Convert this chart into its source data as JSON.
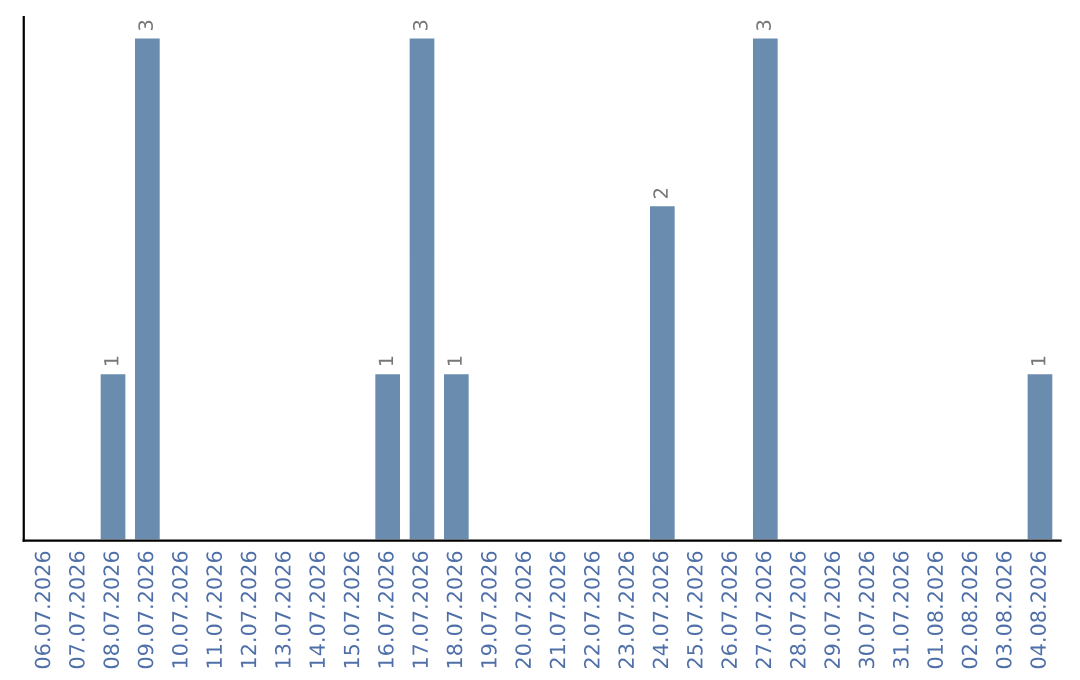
{
  "chart_data": {
    "type": "bar",
    "categories": [
      "06.07.2026",
      "07.07.2026",
      "08.07.2026",
      "09.07.2026",
      "10.07.2026",
      "11.07.2026",
      "12.07.2026",
      "13.07.2026",
      "14.07.2026",
      "15.07.2026",
      "16.07.2026",
      "17.07.2026",
      "18.07.2026",
      "19.07.2026",
      "20.07.2026",
      "21.07.2026",
      "22.07.2026",
      "23.07.2026",
      "24.07.2026",
      "25.07.2026",
      "26.07.2026",
      "27.07.2026",
      "28.07.2026",
      "29.07.2026",
      "30.07.2026",
      "31.07.2026",
      "01.08.2026",
      "02.08.2026",
      "03.08.2026",
      "04.08.2026"
    ],
    "values": [
      null,
      null,
      1,
      3,
      null,
      null,
      null,
      null,
      null,
      null,
      1,
      3,
      1,
      null,
      null,
      null,
      null,
      null,
      2,
      null,
      null,
      3,
      null,
      null,
      null,
      null,
      null,
      null,
      null,
      1
    ],
    "color": "#6a8caf",
    "data_labels": true,
    "tick_labels": "x",
    "grid": false,
    "legend": false
  }
}
